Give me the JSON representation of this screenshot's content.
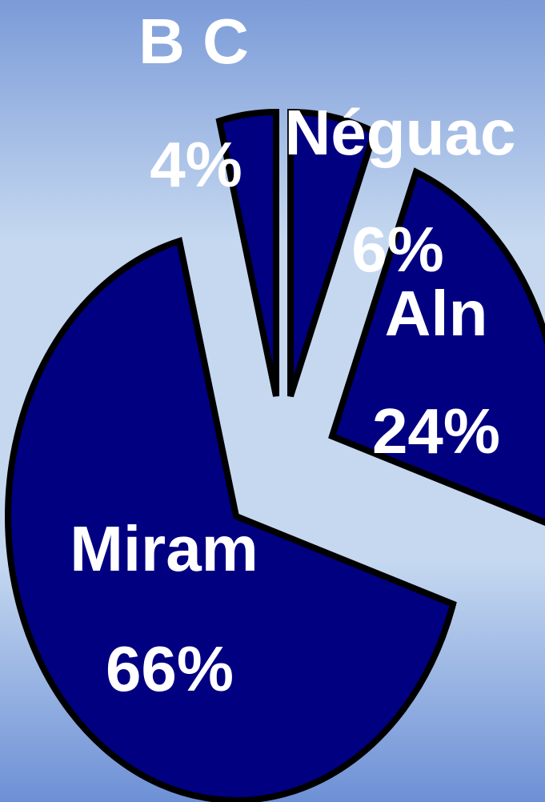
{
  "chart_data": {
    "type": "pie",
    "categories": [
      "Néguac",
      "Aln",
      "Miram",
      "B C"
    ],
    "values": [
      6,
      24,
      66,
      4
    ],
    "value_labels": [
      "6%",
      "24%",
      "66%",
      "4%"
    ],
    "color": "#000080"
  }
}
